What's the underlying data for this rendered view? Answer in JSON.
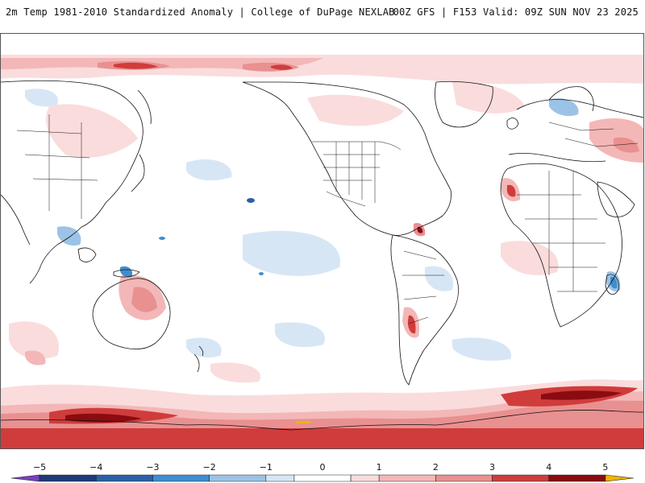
{
  "header": {
    "title_left": "2m Temp 1981-2010 Standardized Anomaly | College of DuPage NEXLAB",
    "title_right": "00Z GFS | F153 Valid: 09Z SUN NOV 23 2025"
  },
  "map": {
    "projection": "equirectangular",
    "central_longitude": "Pacific-centered",
    "coastlines": "black",
    "borders": "black"
  },
  "colorbar": {
    "min": -5.5,
    "max": 5.5,
    "tick_labels": [
      "−5",
      "−4",
      "−3",
      "−2",
      "−1",
      "0",
      "1",
      "2",
      "3",
      "4",
      "5"
    ],
    "tick_values": [
      -5,
      -4,
      -3,
      -2,
      -1,
      0,
      1,
      2,
      3,
      4,
      5
    ],
    "bins": [
      {
        "from": -5.5,
        "to": -5,
        "color": "#7b3fbf"
      },
      {
        "from": -5,
        "to": -4,
        "color": "#1f3a78"
      },
      {
        "from": -4,
        "to": -3,
        "color": "#2c5fa8"
      },
      {
        "from": -3,
        "to": -2,
        "color": "#3d8ed0"
      },
      {
        "from": -2,
        "to": -1,
        "color": "#9cc3e6"
      },
      {
        "from": -1,
        "to": -0.5,
        "color": "#d7e6f5"
      },
      {
        "from": -0.5,
        "to": 0.5,
        "color": "#ffffff"
      },
      {
        "from": 0.5,
        "to": 1,
        "color": "#fadcdc"
      },
      {
        "from": 1,
        "to": 2,
        "color": "#f3b7b7"
      },
      {
        "from": 2,
        "to": 3,
        "color": "#e99090"
      },
      {
        "from": 3,
        "to": 4,
        "color": "#d03c3c"
      },
      {
        "from": 4,
        "to": 5,
        "color": "#8a0c10"
      },
      {
        "from": 5,
        "to": 5.5,
        "color": "#f0b400"
      }
    ]
  }
}
